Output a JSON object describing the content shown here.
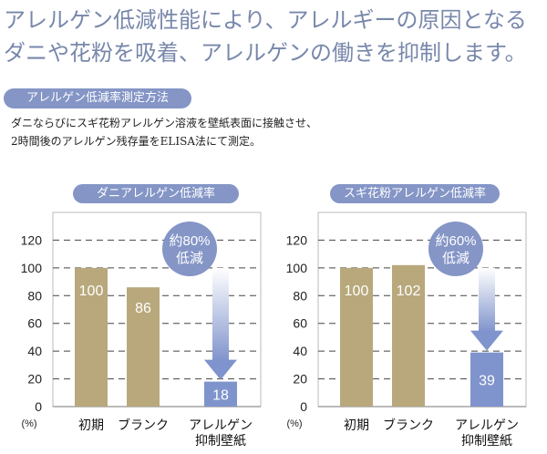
{
  "headline": {
    "line1": "アレルゲン低減性能により、アレルギーの原因となる",
    "line2": "ダニや花粉を吸着、アレルゲンの働きを抑制します。"
  },
  "method": {
    "title": "アレルゲン低減率測定方法",
    "line1": "ダニならびにスギ花粉アレルゲン溶液を壁紙表面に接触させ、",
    "line2": "2時間後のアレルゲン残存量をELISA法にて測定。"
  },
  "colors": {
    "bar_control": "#b8a87c",
    "bar_product": "#7f93cc",
    "accent": "#8495c6",
    "headline": "#7887ab"
  },
  "chart_data": [
    {
      "type": "bar",
      "title": "ダニアレルゲン低減率",
      "categories": [
        [
          "初期"
        ],
        [
          "ブランク"
        ],
        [
          "アレルゲン",
          "抑制壁紙"
        ]
      ],
      "values": [
        100,
        86,
        18
      ],
      "data_labels": [
        "100",
        "86",
        "18"
      ],
      "ylabel": "(%)",
      "yticks": [
        "0",
        "20",
        "40",
        "60",
        "80",
        "100",
        "120"
      ],
      "ylim": [
        0,
        140
      ],
      "grid": "dashed horizontal",
      "annotation": [
        "約80%",
        "低減"
      ]
    },
    {
      "type": "bar",
      "title": "スギ花粉アレルゲン低減率",
      "categories": [
        [
          "初期"
        ],
        [
          "ブランク"
        ],
        [
          "アレルゲン",
          "抑制壁紙"
        ]
      ],
      "values": [
        100,
        102,
        39
      ],
      "data_labels": [
        "100",
        "102",
        "39"
      ],
      "ylabel": "(%)",
      "yticks": [
        "0",
        "20",
        "40",
        "60",
        "80",
        "100",
        "120"
      ],
      "ylim": [
        0,
        140
      ],
      "grid": "dashed horizontal",
      "annotation": [
        "約60%",
        "低減"
      ]
    }
  ]
}
